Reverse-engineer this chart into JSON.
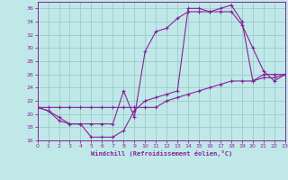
{
  "xlabel": "Windchill (Refroidissement éolien,°C)",
  "xlim": [
    0,
    23
  ],
  "ylim": [
    16,
    37
  ],
  "bg_color": "#c0e8e8",
  "grid_color": "#99cccc",
  "line_color": "#882299",
  "xticks": [
    0,
    1,
    2,
    3,
    4,
    5,
    6,
    7,
    8,
    9,
    10,
    11,
    12,
    13,
    14,
    15,
    16,
    17,
    18,
    19,
    20,
    21,
    22,
    23
  ],
  "yticks": [
    16,
    18,
    20,
    22,
    24,
    26,
    28,
    30,
    32,
    34,
    36
  ],
  "line1_x": [
    0,
    1,
    2,
    3,
    4,
    5,
    6,
    7,
    8,
    9,
    10,
    11,
    12,
    13,
    14,
    15,
    16,
    17,
    18,
    19,
    20,
    21,
    22,
    23
  ],
  "line1_y": [
    21,
    20.5,
    19.0,
    18.5,
    18.5,
    16.5,
    16.5,
    16.5,
    17.5,
    20.5,
    22,
    22.5,
    23,
    23.5,
    36,
    36,
    35.5,
    36,
    36.5,
    34,
    25,
    26,
    26,
    26
  ],
  "line2_x": [
    0,
    1,
    2,
    3,
    4,
    5,
    6,
    7,
    8,
    9,
    10,
    11,
    12,
    13,
    14,
    15,
    16,
    17,
    18,
    19,
    20,
    21,
    22,
    23
  ],
  "line2_y": [
    21,
    20.5,
    19.5,
    18.5,
    18.5,
    18.5,
    18.5,
    18.5,
    23.5,
    19.5,
    29.5,
    32.5,
    33,
    34.5,
    35.5,
    35.5,
    35.5,
    35.5,
    35.5,
    33.5,
    30,
    26.5,
    25,
    26
  ],
  "line3_x": [
    0,
    1,
    2,
    3,
    4,
    5,
    6,
    7,
    8,
    9,
    10,
    11,
    12,
    13,
    14,
    15,
    16,
    17,
    18,
    19,
    20,
    21,
    22,
    23
  ],
  "line3_y": [
    21,
    21,
    21,
    21,
    21,
    21,
    21,
    21,
    21,
    21,
    21,
    21,
    22,
    22.5,
    23,
    23.5,
    24,
    24.5,
    25,
    25,
    25,
    25.5,
    25.5,
    26
  ]
}
